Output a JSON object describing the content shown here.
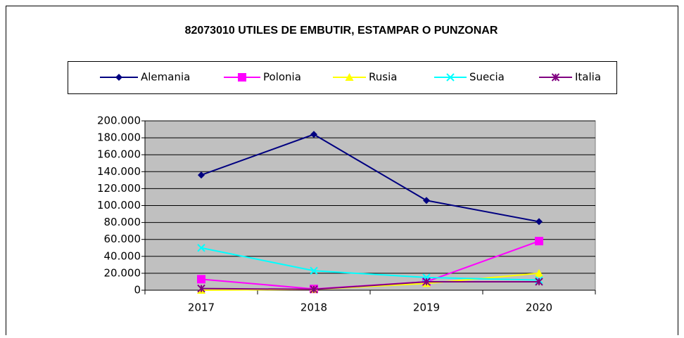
{
  "chart_data": {
    "type": "line",
    "title": "82073010 UTILES DE EMBUTIR, ESTAMPAR O PUNZONAR",
    "categories": [
      "2017",
      "2018",
      "2019",
      "2020"
    ],
    "series": [
      {
        "name": "Alemania",
        "color": "#000080",
        "marker": "diamond",
        "values": [
          136000,
          184000,
          106000,
          81000
        ]
      },
      {
        "name": "Polonia",
        "color": "#ff00ff",
        "marker": "square",
        "values": [
          13000,
          1500,
          10000,
          58000
        ]
      },
      {
        "name": "Rusia",
        "color": "#ffff00",
        "marker": "triangle",
        "values": [
          0,
          1000,
          8000,
          20000
        ]
      },
      {
        "name": "Suecia",
        "color": "#00ffff",
        "marker": "x",
        "values": [
          50000,
          23000,
          15000,
          12000
        ]
      },
      {
        "name": "Italia",
        "color": "#800080",
        "marker": "star",
        "values": [
          2000,
          1000,
          10000,
          10000
        ]
      }
    ],
    "ylim": [
      0,
      200000
    ],
    "yticks": [
      0,
      {
        "value": 20000,
        "label": "20.000"
      },
      {
        "value": 40000,
        "label": "40.000"
      },
      {
        "value": 60000,
        "label": "60.000"
      },
      {
        "value": 80000,
        "label": "80.000"
      },
      {
        "value": 100000,
        "label": "100.000"
      },
      {
        "value": 120000,
        "label": "120.000"
      },
      {
        "value": 140000,
        "label": "140.000"
      },
      {
        "value": 160000,
        "label": "160.000"
      },
      {
        "value": 180000,
        "label": "180.000"
      },
      {
        "value": 200000,
        "label": "200.000"
      }
    ],
    "grid": true,
    "plot_background": "#c0c0c0",
    "legend": "top"
  }
}
